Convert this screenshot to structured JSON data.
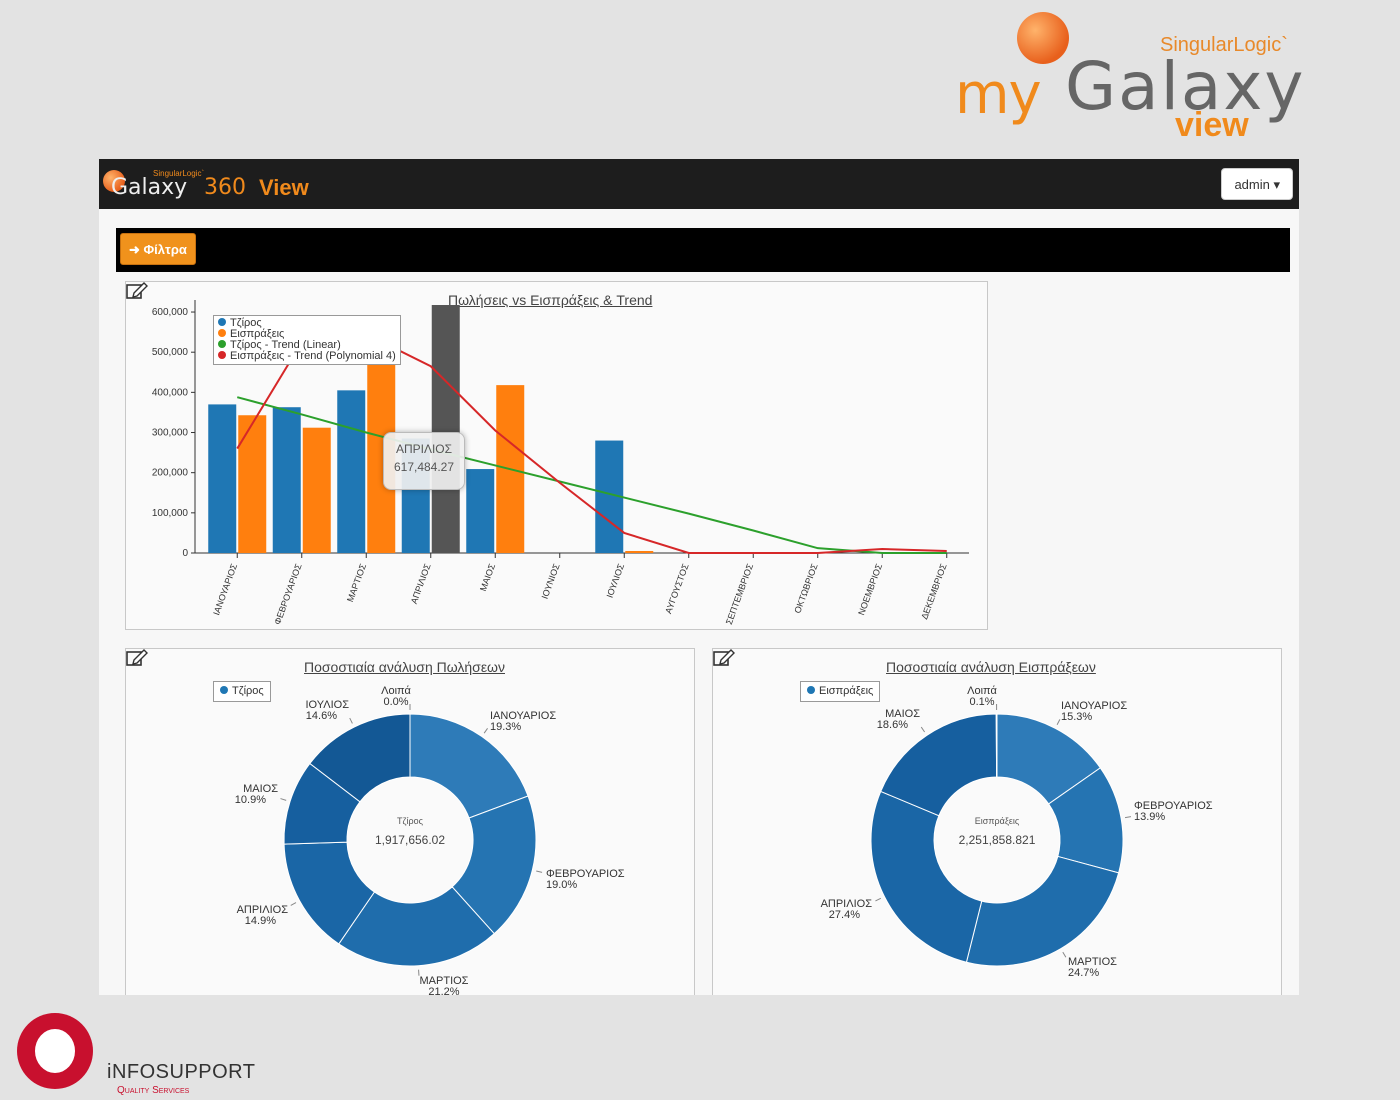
{
  "branding": {
    "my": "my",
    "galaxy": "Galaxy",
    "singularlogic": "SingularLogic`",
    "view": "view"
  },
  "navbar": {
    "logo_galaxy": "Galaxy",
    "logo_singularlogic": "SingularLogic`",
    "logo_360": "360",
    "logo_view": "View",
    "user_button": "admin ▾"
  },
  "toolbar": {
    "filter_button": "➜ Φίλτρα"
  },
  "colors": {
    "turnover": "#1f77b4",
    "receipts": "#ff7f0e",
    "trend_linear": "#2ca02c",
    "trend_poly": "#d62728",
    "highlight": "#555555"
  },
  "bar_panel": {
    "title": "Πωλήσεις vs Εισπράξεις & Trend",
    "legend": [
      {
        "label": "Τζίρος",
        "color": "#1f77b4"
      },
      {
        "label": "Εισπράξεις",
        "color": "#ff7f0e"
      },
      {
        "label": "Τζίρος - Trend (Linear)",
        "color": "#2ca02c"
      },
      {
        "label": "Εισπράξεις - Trend (Polynomial 4)",
        "color": "#d62728"
      }
    ],
    "tooltip": {
      "month": "ΑΠΡΙΛΙΟΣ",
      "value": "617,484.27"
    }
  },
  "sales_panel": {
    "title": "Ποσοστιαία ανάλυση Πωλήσεων",
    "legend_label": "Τζίρος",
    "center_label": "Τζίρος",
    "center_value": "1,917,656.02"
  },
  "receipts_panel": {
    "title": "Ποσοστιαία ανάλυση Εισπράξεων",
    "legend_label": "Εισπράξεις",
    "center_label": "Εισπράξεις",
    "center_value": "2,251,858.821"
  },
  "footer": {
    "company": "iNFOSUPPORT",
    "tagline": "Quality Services"
  },
  "chart_data": [
    {
      "type": "bar",
      "title": "Πωλήσεις vs Εισπράξεις & Trend",
      "categories": [
        "ΙΑΝΟΥΑΡΙΟΣ",
        "ΦΕΒΡΟΥΑΡΙΟΣ",
        "ΜΑΡΤΙΟΣ",
        "ΑΠΡΙΛΙΟΣ",
        "ΜΑΙΟΣ",
        "ΙΟΥΝΙΟΣ",
        "ΙΟΥΛΙΟΣ",
        "ΑΥΓΟΥΣΤΟΣ",
        "ΣΕΠΤΕΜΒΡΙΟΣ",
        "ΟΚΤΩΒΡΙΟΣ",
        "ΝΟΕΜΒΡΙΟΣ",
        "ΔΕΚΕΜΒΡΙΟΣ"
      ],
      "series": [
        {
          "name": "Τζίρος",
          "kind": "bar",
          "color": "#1f77b4",
          "values": [
            370000,
            363000,
            405000,
            285000,
            209000,
            0,
            280000,
            0,
            0,
            0,
            0,
            0
          ]
        },
        {
          "name": "Εισπράξεις",
          "kind": "bar",
          "color": "#ff7f0e",
          "values": [
            343000,
            312000,
            555000,
            617484.27,
            418000,
            0,
            5000,
            0,
            0,
            0,
            0,
            0
          ]
        },
        {
          "name": "Τζίρος - Trend (Linear)",
          "kind": "line",
          "color": "#2ca02c",
          "values": [
            388000,
            345000,
            300000,
            258000,
            218000,
            178000,
            138000,
            98000,
            56000,
            12000,
            0,
            0
          ]
        },
        {
          "name": "Εισπράξεις - Trend (Polynomial 4)",
          "kind": "line",
          "color": "#d62728",
          "values": [
            260000,
            525000,
            545000,
            465000,
            305000,
            175000,
            50000,
            0,
            0,
            0,
            10000,
            5000
          ]
        }
      ],
      "highlight": {
        "category": "ΑΠΡΙΛΙΟΣ",
        "series": "Εισπράξεις",
        "color": "#555555"
      },
      "yticks": [
        0,
        100000,
        200000,
        300000,
        400000,
        500000,
        600000
      ],
      "ytick_labels": [
        "0",
        "100,000",
        "200,000",
        "300,000",
        "400,000",
        "500,000",
        "600,000"
      ],
      "ylim": [
        0,
        620000
      ],
      "legend_position": "top-left",
      "grid": false
    },
    {
      "type": "pie",
      "title": "Ποσοστιαία ανάλυση Πωλήσεων",
      "series_name": "Τζίρος",
      "center_text": [
        "Τζίρος",
        "1,917,656.02"
      ],
      "slices": [
        {
          "label": "ΙΑΝΟΥΑΡΙΟΣ",
          "pct": "19.3%",
          "value": 19.3,
          "color": "#2e7bb8"
        },
        {
          "label": "ΦΕΒΡΟΥΑΡΙΟΣ",
          "pct": "19.0%",
          "value": 19.0,
          "color": "#2574b2"
        },
        {
          "label": "ΜΑΡΤΙΟΣ",
          "pct": "21.2%",
          "value": 21.2,
          "color": "#1f6dac"
        },
        {
          "label": "ΑΠΡΙΛΙΟΣ",
          "pct": "14.9%",
          "value": 14.9,
          "color": "#1a66a6"
        },
        {
          "label": "ΜΑΙΟΣ",
          "pct": "10.9%",
          "value": 10.9,
          "color": "#165f9f"
        },
        {
          "label": "ΙΟΥΛΙΟΣ",
          "pct": "14.6%",
          "value": 14.6,
          "color": "#135895"
        },
        {
          "label": "Λοιπά",
          "pct": "0.0%",
          "value": 0.0,
          "color": "#0f4f8a"
        }
      ]
    },
    {
      "type": "pie",
      "title": "Ποσοστιαία ανάλυση Εισπράξεων",
      "series_name": "Εισπράξεις",
      "center_text": [
        "Εισπράξεις",
        "2,251,858.821"
      ],
      "slices": [
        {
          "label": "ΙΑΝΟΥΑΡΙΟΣ",
          "pct": "15.3%",
          "value": 15.3,
          "color": "#2e7bb8"
        },
        {
          "label": "ΦΕΒΡΟΥΑΡΙΟΣ",
          "pct": "13.9%",
          "value": 13.9,
          "color": "#2574b2"
        },
        {
          "label": "ΜΑΡΤΙΟΣ",
          "pct": "24.7%",
          "value": 24.7,
          "color": "#1f6dac"
        },
        {
          "label": "ΑΠΡΙΛΙΟΣ",
          "pct": "27.4%",
          "value": 27.4,
          "color": "#1a66a6"
        },
        {
          "label": "ΜΑΙΟΣ",
          "pct": "18.6%",
          "value": 18.6,
          "color": "#165f9f"
        },
        {
          "label": "Λοιπά",
          "pct": "0.1%",
          "value": 0.1,
          "color": "#0f4f8a"
        }
      ]
    }
  ]
}
